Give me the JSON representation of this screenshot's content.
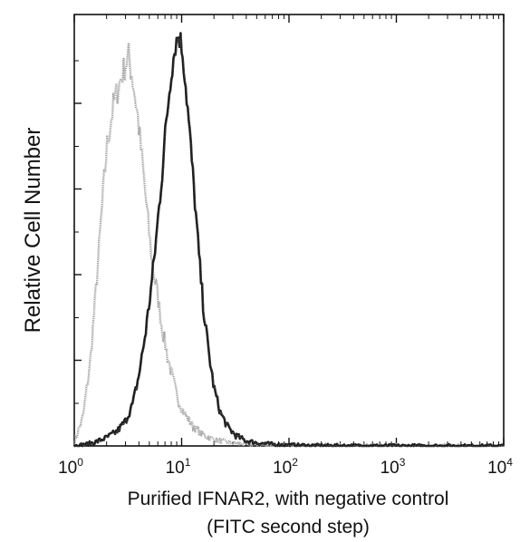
{
  "chart_data": {
    "type": "line",
    "title": "",
    "xlabel_line1": "Purified IFNAR2, with negative control",
    "xlabel_line2": "(FITC second step)",
    "ylabel": "Relative Cell Number",
    "x_scale": "log10",
    "xlim": [
      1,
      10000
    ],
    "ylim": [
      0,
      1
    ],
    "x_ticks": [
      {
        "base": "10",
        "exp": "0"
      },
      {
        "base": "10",
        "exp": "1"
      },
      {
        "base": "10",
        "exp": "2"
      },
      {
        "base": "10",
        "exp": "3"
      },
      {
        "base": "10",
        "exp": "4"
      }
    ],
    "y_tick_count": 5,
    "grid": false,
    "legend": "none",
    "series": [
      {
        "style": "light-gray",
        "color": "#9a9a9a",
        "x": [
          1.0,
          1.2,
          1.4,
          1.6,
          1.8,
          2.0,
          2.3,
          2.6,
          2.9,
          3.2,
          3.5,
          3.9,
          4.3,
          4.8,
          5.3,
          5.9,
          6.5,
          7.3,
          8.1,
          9.0,
          10.5,
          12.5,
          15,
          18,
          22,
          28,
          35,
          45,
          60,
          100,
          1000,
          10000
        ],
        "y": [
          0.01,
          0.07,
          0.2,
          0.39,
          0.57,
          0.72,
          0.82,
          0.87,
          0.91,
          0.94,
          0.88,
          0.79,
          0.68,
          0.55,
          0.44,
          0.37,
          0.29,
          0.22,
          0.17,
          0.12,
          0.08,
          0.05,
          0.03,
          0.02,
          0.012,
          0.008,
          0.005,
          0.003,
          0.002,
          0.001,
          0.0,
          0.0
        ]
      },
      {
        "style": "dark-black",
        "color": "#1a1a1a",
        "x": [
          1.0,
          1.3,
          1.6,
          2.0,
          2.5,
          3.0,
          3.5,
          4.0,
          4.6,
          5.2,
          5.8,
          6.5,
          7.2,
          8.0,
          8.8,
          9.5,
          10.2,
          11.0,
          12.0,
          13.2,
          14.5,
          16,
          18,
          20,
          23,
          27,
          32,
          40,
          55,
          80,
          150,
          1000,
          10000
        ],
        "y": [
          0.0,
          0.004,
          0.01,
          0.02,
          0.035,
          0.06,
          0.1,
          0.17,
          0.27,
          0.38,
          0.5,
          0.64,
          0.78,
          0.9,
          0.97,
          0.99,
          0.95,
          0.86,
          0.74,
          0.6,
          0.46,
          0.33,
          0.22,
          0.14,
          0.08,
          0.045,
          0.025,
          0.012,
          0.006,
          0.003,
          0.001,
          0.0,
          0.0
        ]
      }
    ]
  }
}
